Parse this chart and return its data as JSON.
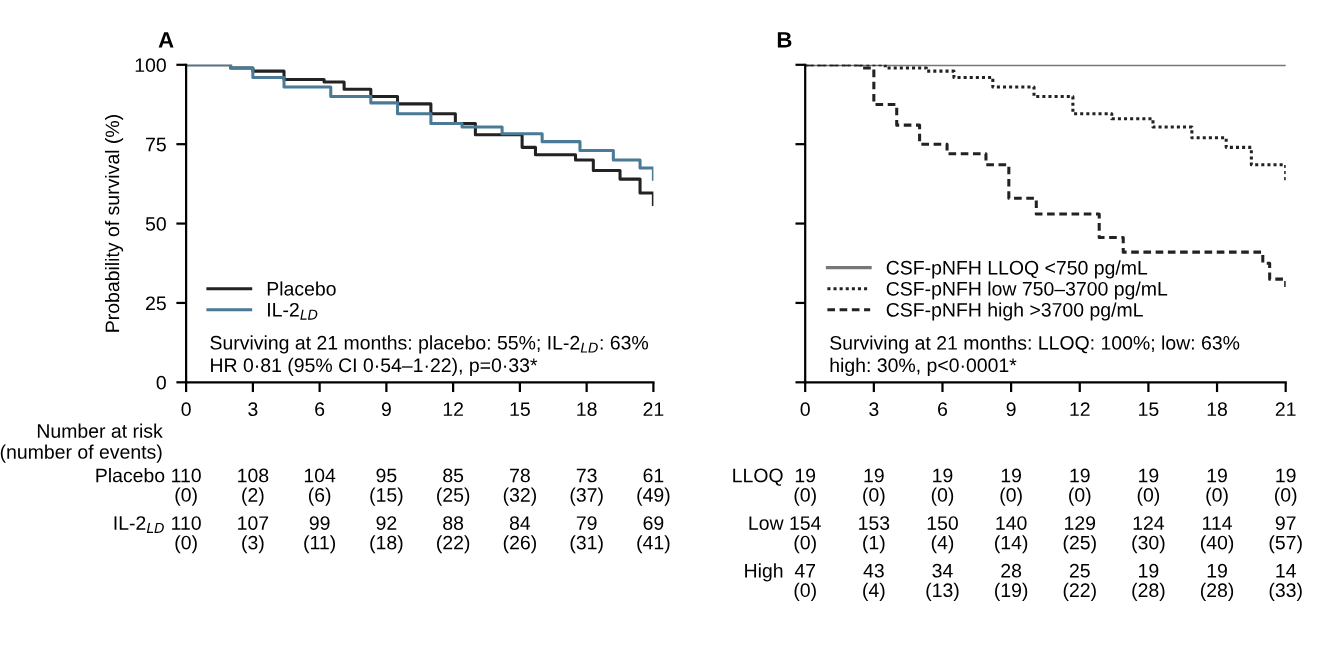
{
  "chart_data": [
    {
      "type": "step",
      "title": "A",
      "ylabel": "Probability of survival (%)",
      "xlim": [
        0,
        21
      ],
      "ylim": [
        0,
        100
      ],
      "xticks": [
        0,
        3,
        6,
        9,
        12,
        15,
        18,
        21
      ],
      "yticks": [
        0,
        25,
        50,
        75,
        100
      ],
      "grid": false,
      "legend": "bottom left",
      "series": [
        {
          "name": "Placebo",
          "color": "#222222",
          "line_style": "solid",
          "x": [
            0,
            2,
            3,
            4.4,
            6.2,
            7.1,
            8.3,
            9.5,
            11,
            12.1,
            13,
            15.1,
            15.7,
            17.5,
            18.3,
            19.5,
            20.4,
            21
          ],
          "values": [
            100,
            99,
            98,
            95.4,
            94.6,
            92.3,
            90,
            87.7,
            84.6,
            81.5,
            78,
            74,
            71.7,
            70,
            66.7,
            64,
            59.6,
            56
          ]
        },
        {
          "name": "IL-2$_{LD}$",
          "color": "#4a7a95",
          "line_style": "solid",
          "x": [
            0,
            2,
            3,
            4.4,
            6.5,
            8.3,
            9.5,
            11,
            12.4,
            14.2,
            16,
            17.7,
            19.2,
            20.4,
            21
          ],
          "values": [
            100,
            99,
            96,
            93,
            90,
            88,
            84.6,
            81.5,
            80.4,
            78.3,
            75.8,
            73,
            70,
            67.5,
            64
          ]
        }
      ],
      "annotations": [
        "Surviving at 21 months: placebo: 55%; IL-2$_{LD}$: 63%\nHR 0·81 (95% CI 0·54–1·22), p=0·33*",
        "Number at risk\n(number of events)",
        "Placebo",
        "110\n(0)",
        "108\n(2)",
        "104\n(6)",
        "95\n(15)",
        "85\n(25)",
        "78\n(32)",
        "73\n(37)",
        "61\n(49)",
        "IL-2$_{LD}$",
        "110\n(0)",
        "107\n(3)",
        "99\n(11)",
        "92\n(18)",
        "88\n(22)",
        "84\n(26)",
        "79\n(31)",
        "69\n(41)"
      ]
    },
    {
      "type": "step",
      "title": "B",
      "xlim": [
        0,
        21
      ],
      "ylim": [
        0,
        100
      ],
      "xticks": [
        0,
        3,
        6,
        9,
        12,
        15,
        18,
        21
      ],
      "yticks": [
        0,
        25,
        50,
        75,
        100
      ],
      "tick_labels": "x",
      "grid": false,
      "legend": "bottom left",
      "series": [
        {
          "name": "CSF-pNFH LLOQ <750 pg/mL",
          "color": "#777777",
          "line_style": "solid",
          "x": [
            0,
            21
          ],
          "values": [
            100,
            100
          ]
        },
        {
          "name": "CSF-pNFH low 750–3700 pg/mL",
          "color": "#222222",
          "line_style": "dotted",
          "x": [
            0,
            3.5,
            5.3,
            6.5,
            8.2,
            10,
            11.7,
            13.4,
            15.2,
            16.9,
            18.4,
            19.5,
            21
          ],
          "values": [
            100,
            99,
            98,
            96,
            93,
            90,
            84.6,
            83,
            80.4,
            77,
            74,
            68.5,
            63
          ]
        },
        {
          "name": "CSF-pNFH high >3700 pg/mL",
          "color": "#222222",
          "line_style": "dashed",
          "x": [
            0,
            2.4,
            3.0,
            4.0,
            5.0,
            6.2,
            7.9,
            8.9,
            10.1,
            12.85,
            13.9,
            20,
            20.3,
            21
          ],
          "values": [
            100,
            99,
            87.5,
            81,
            75,
            72,
            68.5,
            58,
            53,
            45.6,
            41,
            37.5,
            32.5,
            30
          ]
        }
      ],
      "annotations": [
        "Surviving at 21 months: LLOQ: 100%; low: 63%\nhigh: 30%, p<0·0001*",
        "LLOQ",
        "19\n(0)",
        "19\n(0)",
        "19\n(0)",
        "19\n(0)",
        "19\n(0)",
        "19\n(0)",
        "19\n(0)",
        "19\n(0)",
        "Low",
        "154\n(0)",
        "153\n(1)",
        "150\n(4)",
        "140\n(14)",
        "129\n(25)",
        "124\n(30)",
        "114\n(40)",
        "97\n(57)",
        "High",
        "47\n(0)",
        "43\n(4)",
        "34\n(13)",
        "28\n(19)",
        "25\n(22)",
        "19\n(28)",
        "19\n(28)",
        "14\n(33)"
      ]
    }
  ]
}
